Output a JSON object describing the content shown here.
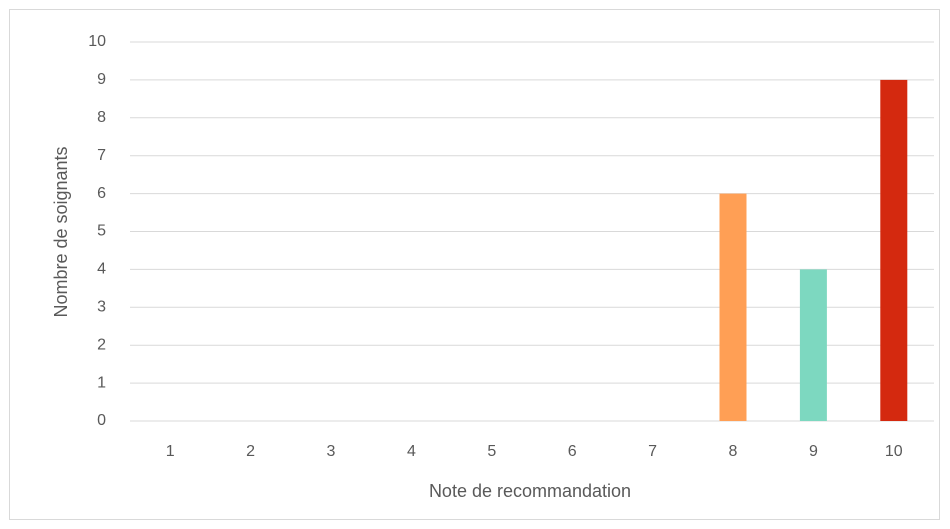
{
  "chart_data": {
    "type": "bar",
    "x_label": "Note de recommandation",
    "y_label": "Nombre de soignants",
    "categories": [
      "1",
      "2",
      "3",
      "4",
      "5",
      "6",
      "7",
      "8",
      "9",
      "10"
    ],
    "values": [
      0,
      0,
      0,
      0,
      0,
      0,
      0,
      6,
      4,
      9
    ],
    "colors": [
      null,
      null,
      null,
      null,
      null,
      null,
      null,
      "#ff9f55",
      "#7dd8c0",
      "#d4290f"
    ],
    "ylim": [
      0,
      10
    ],
    "yticks": [
      0,
      1,
      2,
      3,
      4,
      5,
      6,
      7,
      8,
      9,
      10
    ],
    "grid": true
  }
}
